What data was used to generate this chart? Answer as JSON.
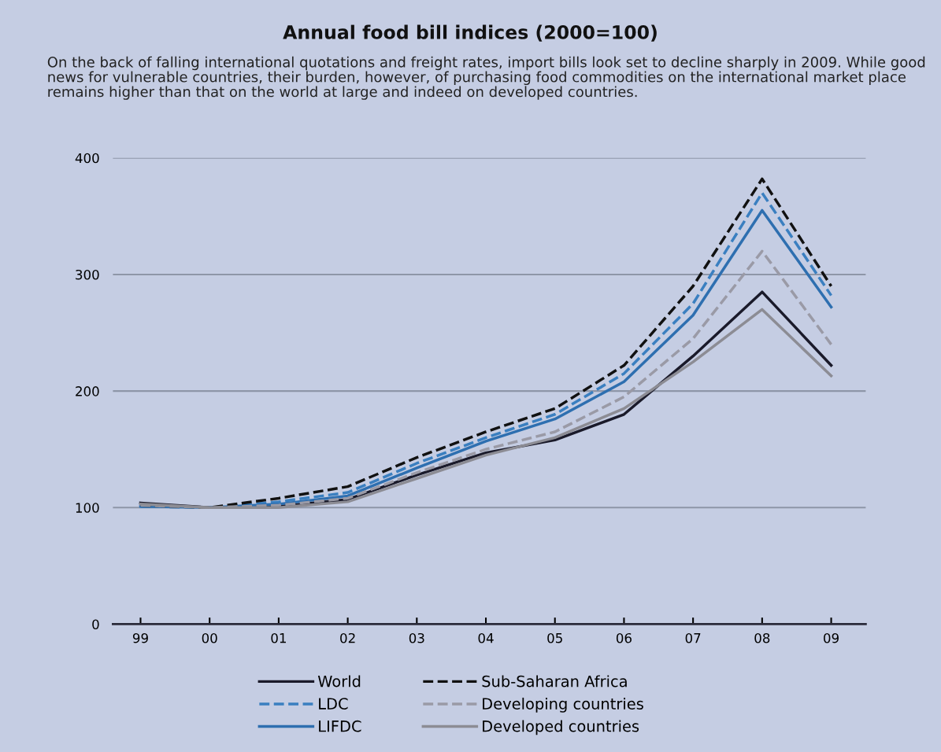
{
  "chart_data": {
    "type": "line",
    "title": "Annual food bill indices (2000=100)",
    "subtitle": "On the back of falling international quotations and freight rates, import bills look set to decline sharply in 2009. While good news for vulnerable countries, their burden, however, of purchasing food commodities on the international market place remains higher than that on the world at large and indeed on developed countries.",
    "categories": [
      "99",
      "00",
      "01",
      "02",
      "03",
      "04",
      "05",
      "06",
      "07",
      "08",
      "09"
    ],
    "ylim": [
      0,
      400
    ],
    "yticks": [
      0,
      100,
      200,
      300,
      400
    ],
    "grid": "y",
    "legend": "bottom",
    "series": [
      {
        "name": "World",
        "color": "#1a1a2a",
        "line_style": "solid",
        "values": [
          104,
          100,
          101,
          107,
          128,
          147,
          158,
          180,
          230,
          285,
          222
        ]
      },
      {
        "name": "LDC",
        "color": "#3a7fc0",
        "line_style": "dashed",
        "values": [
          101,
          100,
          105,
          113,
          138,
          160,
          180,
          215,
          275,
          370,
          282
        ]
      },
      {
        "name": "LIFDC",
        "color": "#2e6fb0",
        "line_style": "solid",
        "values": [
          101,
          100,
          103,
          110,
          134,
          157,
          176,
          208,
          265,
          355,
          272
        ]
      },
      {
        "name": "Sub-Saharan Africa",
        "color": "#111111",
        "line_style": "dashed",
        "values": [
          102,
          100,
          108,
          118,
          143,
          165,
          185,
          222,
          290,
          382,
          290
        ]
      },
      {
        "name": "Developing countries",
        "color": "#9a9aa6",
        "line_style": "dashed",
        "values": [
          102,
          100,
          102,
          108,
          130,
          150,
          165,
          195,
          245,
          320,
          240
        ]
      },
      {
        "name": "Developed countries",
        "color": "#8c8c94",
        "line_style": "solid",
        "values": [
          103,
          100,
          100,
          105,
          125,
          145,
          160,
          185,
          225,
          270,
          213
        ]
      }
    ]
  }
}
